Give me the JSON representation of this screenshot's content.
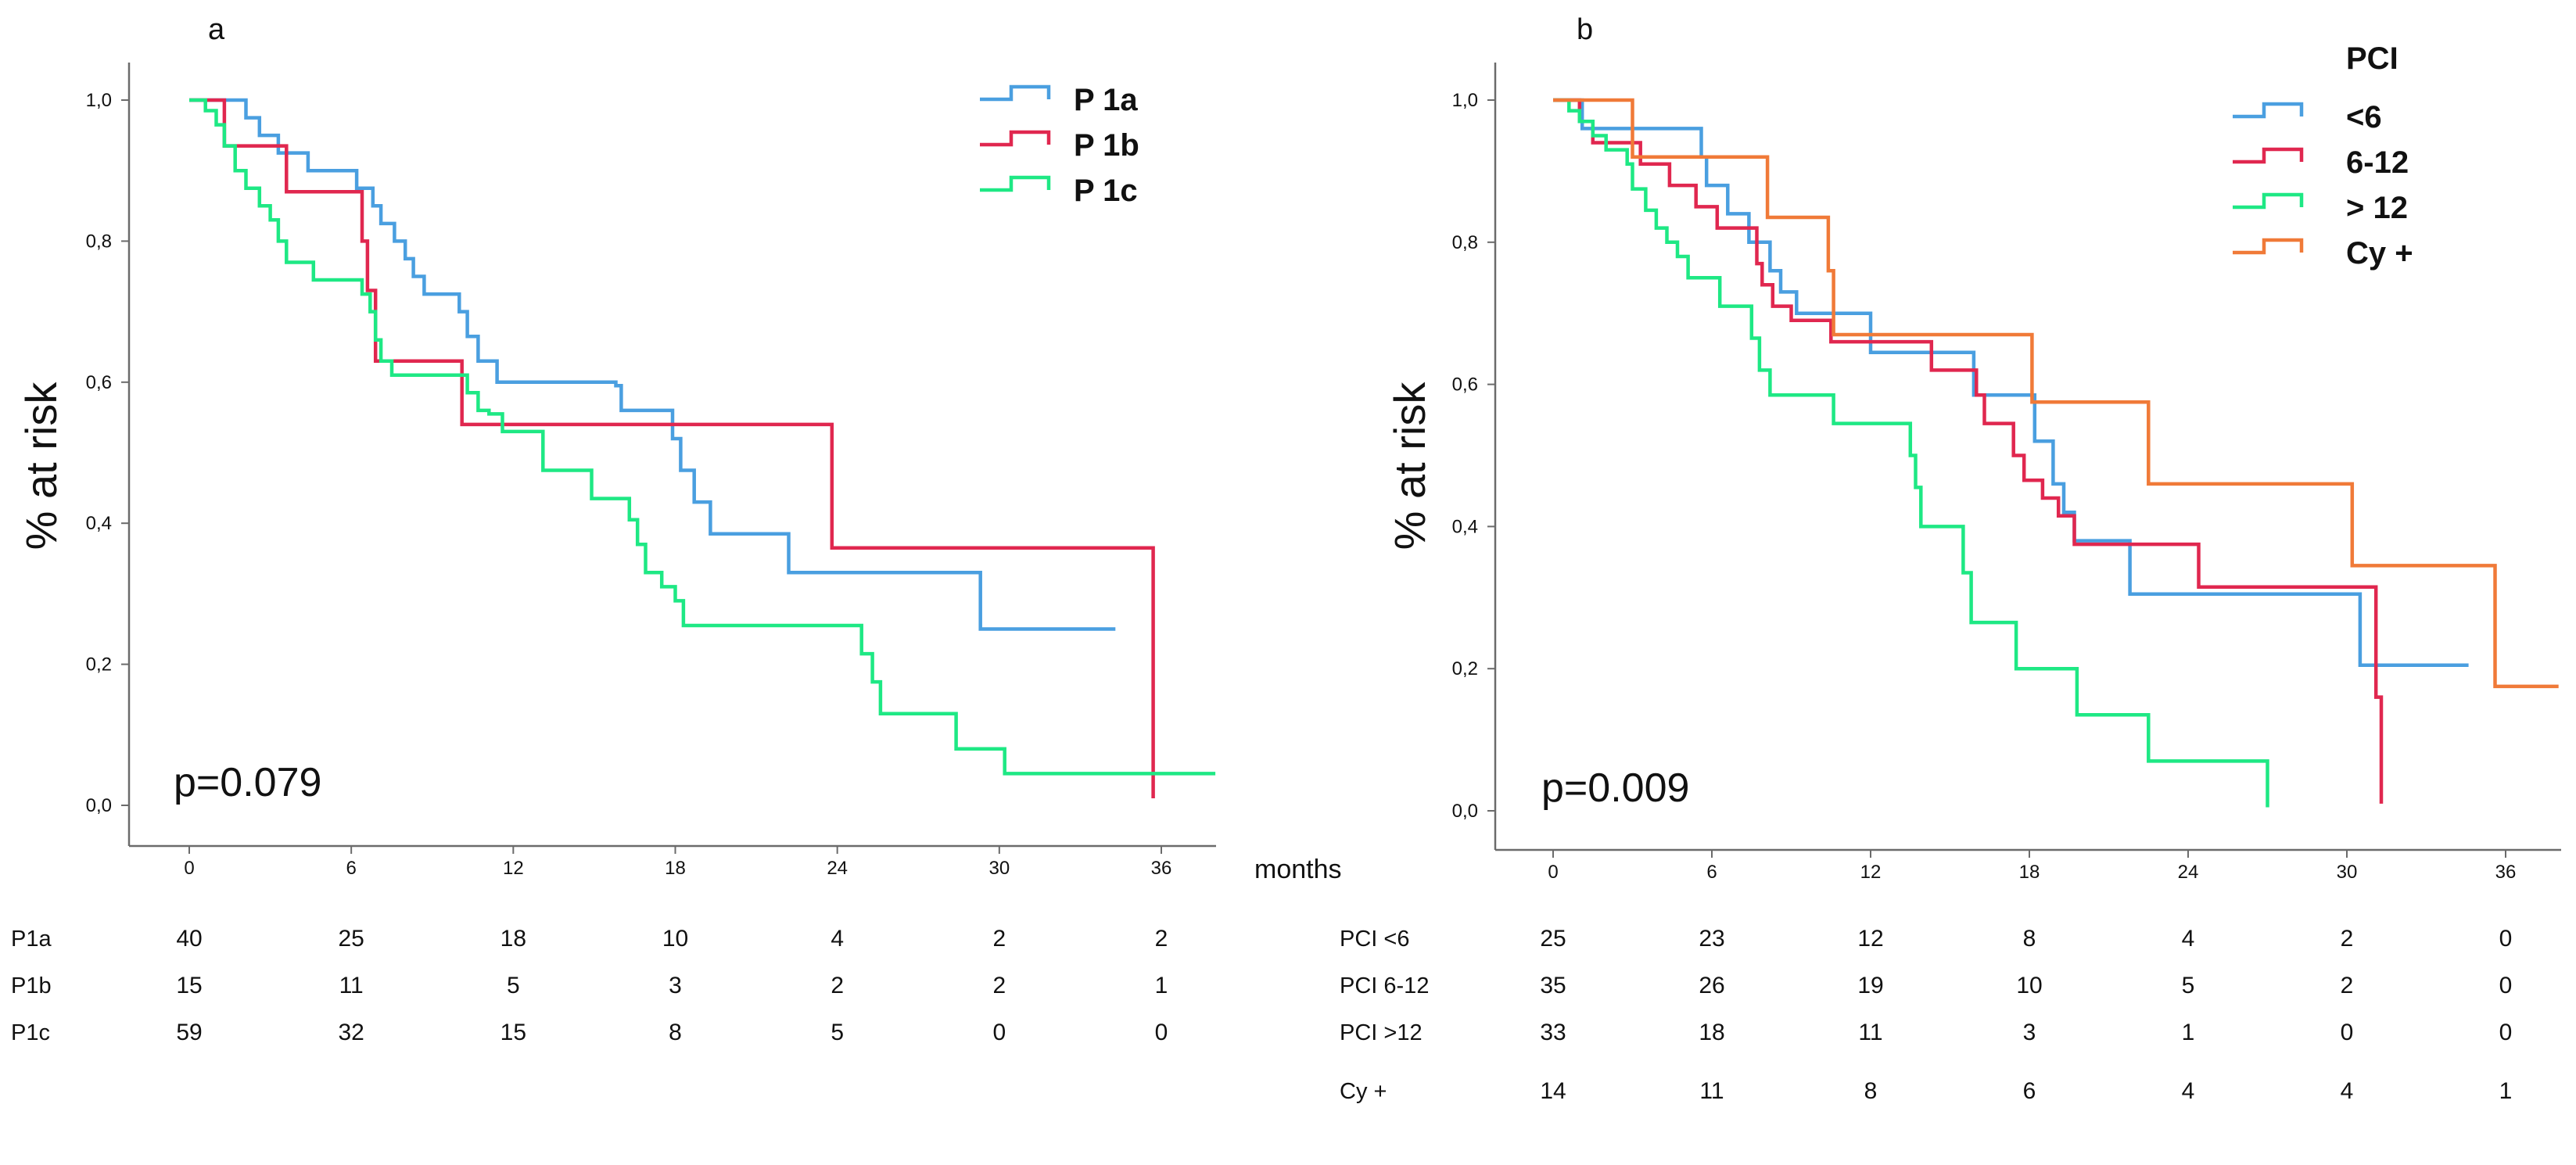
{
  "chart_data": [
    {
      "type": "line",
      "subtype": "kaplan-meier step",
      "panel_label": "a",
      "ylabel": "% at risk",
      "xlabel": "months",
      "xlim": [
        -3,
        38
      ],
      "ylim": [
        -0.05,
        1.05
      ],
      "x_ticks": [
        0,
        6,
        12,
        18,
        24,
        30,
        36
      ],
      "y_ticks": [
        "0,0",
        "0,2",
        "0,4",
        "0,6",
        "0,8",
        "1,0"
      ],
      "annotation": "p=0.079",
      "legend_position": "top-right",
      "series": [
        {
          "name": "P 1a",
          "color": "#4a9fe0",
          "points": [
            [
              0,
              1.0
            ],
            [
              1.7,
              1.0
            ],
            [
              2.1,
              0.975
            ],
            [
              2.6,
              0.95
            ],
            [
              3.3,
              0.925
            ],
            [
              4.4,
              0.9
            ],
            [
              5.0,
              0.9
            ],
            [
              6.2,
              0.875
            ],
            [
              6.8,
              0.85
            ],
            [
              7.1,
              0.825
            ],
            [
              7.6,
              0.8
            ],
            [
              8.0,
              0.775
            ],
            [
              8.3,
              0.75
            ],
            [
              8.7,
              0.725
            ],
            [
              10.0,
              0.7
            ],
            [
              10.3,
              0.665
            ],
            [
              10.7,
              0.63
            ],
            [
              11.4,
              0.6
            ],
            [
              12.3,
              0.6
            ],
            [
              15.8,
              0.595
            ],
            [
              16.0,
              0.56
            ],
            [
              17.7,
              0.56
            ],
            [
              17.9,
              0.52
            ],
            [
              18.2,
              0.475
            ],
            [
              18.7,
              0.43
            ],
            [
              19.3,
              0.385
            ],
            [
              22.0,
              0.385
            ],
            [
              22.2,
              0.33
            ],
            [
              29.1,
              0.33
            ],
            [
              29.3,
              0.25
            ],
            [
              31.3,
              0.25
            ],
            [
              34.3,
              0.25
            ]
          ]
        },
        {
          "name": "P 1b",
          "color": "#e0274f",
          "points": [
            [
              0,
              1.0
            ],
            [
              0.9,
              1.0
            ],
            [
              1.3,
              0.935
            ],
            [
              3.3,
              0.935
            ],
            [
              3.6,
              0.87
            ],
            [
              6.0,
              0.87
            ],
            [
              6.4,
              0.8
            ],
            [
              6.6,
              0.73
            ],
            [
              6.9,
              0.63
            ],
            [
              9.9,
              0.63
            ],
            [
              10.1,
              0.54
            ],
            [
              23.6,
              0.54
            ],
            [
              23.8,
              0.365
            ],
            [
              35.7,
              0.365
            ],
            [
              35.7,
              0.01
            ]
          ]
        },
        {
          "name": "P 1c",
          "color": "#1ee884",
          "points": [
            [
              0,
              1.0
            ],
            [
              0.6,
              0.985
            ],
            [
              1.0,
              0.965
            ],
            [
              1.3,
              0.935
            ],
            [
              1.7,
              0.9
            ],
            [
              2.1,
              0.875
            ],
            [
              2.6,
              0.85
            ],
            [
              3.0,
              0.83
            ],
            [
              3.3,
              0.8
            ],
            [
              3.6,
              0.77
            ],
            [
              4.6,
              0.745
            ],
            [
              6.2,
              0.745
            ],
            [
              6.4,
              0.725
            ],
            [
              6.7,
              0.7
            ],
            [
              6.9,
              0.66
            ],
            [
              7.1,
              0.63
            ],
            [
              7.5,
              0.61
            ],
            [
              9.8,
              0.61
            ],
            [
              10.3,
              0.585
            ],
            [
              10.7,
              0.56
            ],
            [
              11.1,
              0.555
            ],
            [
              11.6,
              0.53
            ],
            [
              12.8,
              0.53
            ],
            [
              13.1,
              0.475
            ],
            [
              14.6,
              0.475
            ],
            [
              14.9,
              0.435
            ],
            [
              16.0,
              0.435
            ],
            [
              16.3,
              0.405
            ],
            [
              16.6,
              0.37
            ],
            [
              16.9,
              0.33
            ],
            [
              17.5,
              0.31
            ],
            [
              18.0,
              0.29
            ],
            [
              18.3,
              0.255
            ],
            [
              24.5,
              0.255
            ],
            [
              24.9,
              0.215
            ],
            [
              25.3,
              0.175
            ],
            [
              25.6,
              0.13
            ],
            [
              28.0,
              0.13
            ],
            [
              28.4,
              0.08
            ],
            [
              29.9,
              0.08
            ],
            [
              30.2,
              0.045
            ],
            [
              38.0,
              0.045
            ]
          ]
        }
      ],
      "risk_table": {
        "x": [
          0,
          6,
          12,
          18,
          24,
          30,
          36
        ],
        "rows": [
          {
            "label": "P1a",
            "values": [
              "40",
              "25",
              "18",
              "10",
              "4",
              "2",
              "2"
            ]
          },
          {
            "label": "P1b",
            "values": [
              "15",
              "11",
              "5",
              "3",
              "2",
              "2",
              "1"
            ]
          },
          {
            "label": "P1c",
            "values": [
              "59",
              "32",
              "15",
              "8",
              "5",
              "0",
              "0"
            ]
          }
        ]
      }
    },
    {
      "type": "line",
      "subtype": "kaplan-meier step",
      "panel_label": "b",
      "ylabel": "% at risk",
      "xlim": [
        -3,
        38
      ],
      "ylim": [
        -0.05,
        1.05
      ],
      "x_ticks": [
        0,
        6,
        12,
        18,
        24,
        30,
        36
      ],
      "y_ticks": [
        "0,0",
        "0,2",
        "0,4",
        "0,6",
        "0,8",
        "1,0"
      ],
      "annotation": "p=0.009",
      "legend_title": "PCI",
      "legend_position": "top-right",
      "series": [
        {
          "name": "<6",
          "color": "#4a9fe0",
          "points": [
            [
              0,
              1.0
            ],
            [
              1.1,
              0.96
            ],
            [
              5.2,
              0.96
            ],
            [
              5.6,
              0.92
            ],
            [
              5.8,
              0.88
            ],
            [
              6.6,
              0.84
            ],
            [
              7.4,
              0.8
            ],
            [
              8.2,
              0.76
            ],
            [
              8.6,
              0.73
            ],
            [
              9.2,
              0.7
            ],
            [
              11.6,
              0.7
            ],
            [
              12.0,
              0.645
            ],
            [
              14.9,
              0.645
            ],
            [
              15.9,
              0.585
            ],
            [
              18.0,
              0.585
            ],
            [
              18.2,
              0.52
            ],
            [
              18.9,
              0.46
            ],
            [
              19.3,
              0.42
            ],
            [
              19.7,
              0.38
            ],
            [
              21.8,
              0.38
            ],
            [
              21.8,
              0.305
            ],
            [
              30.5,
              0.305
            ],
            [
              30.5,
              0.205
            ],
            [
              34.6,
              0.205
            ]
          ]
        },
        {
          "name": "6-12",
          "color": "#e0274f",
          "points": [
            [
              0,
              1.0
            ],
            [
              1.0,
              0.97
            ],
            [
              1.5,
              0.94
            ],
            [
              3.1,
              0.94
            ],
            [
              3.3,
              0.91
            ],
            [
              4.4,
              0.88
            ],
            [
              5.4,
              0.85
            ],
            [
              6.2,
              0.82
            ],
            [
              7.5,
              0.82
            ],
            [
              7.7,
              0.77
            ],
            [
              7.9,
              0.74
            ],
            [
              8.3,
              0.71
            ],
            [
              9.0,
              0.69
            ],
            [
              10.2,
              0.69
            ],
            [
              10.5,
              0.66
            ],
            [
              13.6,
              0.66
            ],
            [
              14.3,
              0.62
            ],
            [
              15.7,
              0.62
            ],
            [
              16.0,
              0.585
            ],
            [
              16.3,
              0.545
            ],
            [
              17.1,
              0.545
            ],
            [
              17.4,
              0.5
            ],
            [
              17.8,
              0.465
            ],
            [
              18.5,
              0.44
            ],
            [
              19.1,
              0.415
            ],
            [
              19.7,
              0.375
            ],
            [
              24.4,
              0.375
            ],
            [
              24.4,
              0.315
            ],
            [
              31.1,
              0.315
            ],
            [
              31.1,
              0.16
            ],
            [
              31.3,
              0.01
            ]
          ]
        },
        {
          "name": "> 12",
          "color": "#1ee884",
          "points": [
            [
              0,
              1.0
            ],
            [
              0.6,
              0.985
            ],
            [
              1.0,
              0.97
            ],
            [
              1.5,
              0.95
            ],
            [
              2.0,
              0.93
            ],
            [
              2.8,
              0.91
            ],
            [
              3.0,
              0.875
            ],
            [
              3.5,
              0.845
            ],
            [
              3.9,
              0.82
            ],
            [
              4.3,
              0.8
            ],
            [
              4.7,
              0.78
            ],
            [
              5.1,
              0.75
            ],
            [
              6.0,
              0.75
            ],
            [
              6.3,
              0.71
            ],
            [
              7.3,
              0.71
            ],
            [
              7.5,
              0.665
            ],
            [
              7.8,
              0.62
            ],
            [
              8.2,
              0.585
            ],
            [
              10.3,
              0.585
            ],
            [
              10.6,
              0.545
            ],
            [
              13.3,
              0.545
            ],
            [
              13.5,
              0.5
            ],
            [
              13.7,
              0.455
            ],
            [
              13.9,
              0.4
            ],
            [
              15.2,
              0.4
            ],
            [
              15.5,
              0.335
            ],
            [
              15.8,
              0.265
            ],
            [
              17.3,
              0.265
            ],
            [
              17.5,
              0.2
            ],
            [
              19.6,
              0.2
            ],
            [
              19.8,
              0.135
            ],
            [
              22.2,
              0.135
            ],
            [
              22.5,
              0.07
            ],
            [
              27.0,
              0.07
            ],
            [
              27.0,
              0.005
            ]
          ]
        },
        {
          "name": "Cy +",
          "color": "#f07a38",
          "points": [
            [
              0,
              1.0
            ],
            [
              2.9,
              1.0
            ],
            [
              3.0,
              0.92
            ],
            [
              7.9,
              0.92
            ],
            [
              8.1,
              0.835
            ],
            [
              10.2,
              0.835
            ],
            [
              10.4,
              0.76
            ],
            [
              10.6,
              0.67
            ],
            [
              17.9,
              0.67
            ],
            [
              18.1,
              0.575
            ],
            [
              22.3,
              0.575
            ],
            [
              22.5,
              0.46
            ],
            [
              30.0,
              0.46
            ],
            [
              30.2,
              0.345
            ],
            [
              35.4,
              0.345
            ],
            [
              35.6,
              0.175
            ],
            [
              38.0,
              0.175
            ]
          ]
        }
      ],
      "risk_table": {
        "x": [
          0,
          6,
          12,
          18,
          24,
          30,
          36
        ],
        "rows": [
          {
            "label": "PCI <6",
            "values": [
              "25",
              "23",
              "12",
              "8",
              "4",
              "2",
              "0"
            ]
          },
          {
            "label": "PCI 6-12",
            "values": [
              "35",
              "26",
              "19",
              "10",
              "5",
              "2",
              "0"
            ]
          },
          {
            "label": "PCI >12",
            "values": [
              "33",
              "18",
              "11",
              "3",
              "1",
              "0",
              "0"
            ]
          },
          {
            "label": "Cy +",
            "values": [
              "14",
              "11",
              "8",
              "6",
              "4",
              "4",
              "1"
            ]
          }
        ]
      }
    }
  ]
}
